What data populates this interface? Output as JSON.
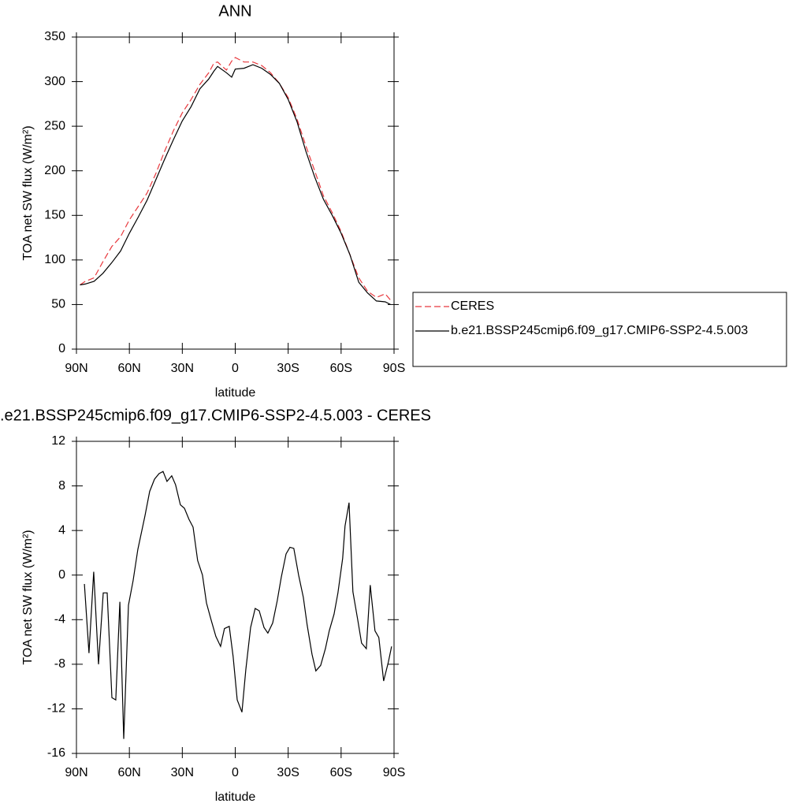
{
  "chart_data": [
    {
      "type": "line",
      "title": "ANN",
      "x_label": "latitude",
      "y_label": "TOA net SW flux (W/m²)",
      "x": [
        88,
        85,
        80,
        75,
        70,
        65,
        60,
        55,
        50,
        45,
        40,
        35,
        30,
        25,
        20,
        15,
        12,
        10,
        5,
        2,
        0,
        -5,
        -10,
        -15,
        -20,
        -25,
        -30,
        -35,
        -40,
        -45,
        -50,
        -55,
        -60,
        -65,
        -70,
        -75,
        -80,
        -85,
        -88
      ],
      "series": [
        {
          "name": "CERES",
          "color": "#e8383d",
          "line_style": "dashed",
          "values": [
            72,
            76,
            80,
            98,
            115,
            126,
            145,
            160,
            175,
            197,
            222,
            245,
            265,
            280,
            297,
            310,
            321,
            322,
            313,
            323,
            327,
            322,
            322,
            318,
            310,
            298,
            282,
            258,
            228,
            200,
            172,
            153,
            132,
            106,
            80,
            65,
            58,
            62,
            55
          ]
        },
        {
          "name": "b.e21.BSSP245cmip6.f09_g17.CMIP6-SSP2-4.5.003",
          "color": "#000000",
          "line_style": "solid",
          "values": [
            72,
            73,
            76,
            85,
            97,
            110,
            130,
            148,
            167,
            190,
            213,
            235,
            256,
            272,
            292,
            303,
            312,
            317,
            310,
            305,
            314,
            315,
            319,
            315,
            308,
            298,
            280,
            255,
            222,
            193,
            168,
            150,
            130,
            106,
            75,
            63,
            54,
            53,
            50
          ]
        }
      ],
      "xlim": [
        90,
        -90
      ],
      "xticks": [
        {
          "value": 90,
          "label": "90N"
        },
        {
          "value": 60,
          "label": "60N"
        },
        {
          "value": 30,
          "label": "30N"
        },
        0,
        {
          "value": -30,
          "label": "30S"
        },
        {
          "value": -60,
          "label": "60S"
        },
        {
          "value": -90,
          "label": "90S"
        }
      ],
      "ylim": [
        0,
        350
      ],
      "yticks": [
        0,
        50,
        100,
        150,
        200,
        250,
        300,
        350
      ],
      "legend": "right"
    },
    {
      "type": "line",
      "title": ".e21.BSSP245cmip6.f09_g17.CMIP6-SSP2-4.5.003 - CERES",
      "x_label": "latitude",
      "y_label": "TOA net SW flux (W/m²)",
      "x": [
        85.5,
        82.9,
        80.2,
        77.5,
        74.8,
        72.6,
        69.9,
        67.7,
        65.4,
        63.2,
        60.5,
        57.9,
        55.2,
        51.2,
        48.5,
        45.8,
        43.2,
        40.9,
        38.7,
        36.0,
        33.8,
        31.1,
        28.8,
        26.2,
        23.9,
        21.3,
        18.6,
        16.3,
        13.7,
        11.0,
        8.3,
        6.1,
        3.4,
        1.2,
        -1.1,
        -3.8,
        -6.0,
        -8.7,
        -11.3,
        -13.6,
        -16.3,
        -18.5,
        -21.2,
        -23.8,
        -26.1,
        -28.8,
        -31.0,
        -33.2,
        -35.9,
        -38.6,
        -40.8,
        -43.5,
        -45.7,
        -48.4,
        -51.1,
        -53.3,
        -56.0,
        -58.2,
        -60.9,
        -62.2,
        -64.5,
        -66.7,
        -69.4,
        -71.6,
        -74.3,
        -76.5,
        -79.2,
        -81.4,
        -84.1,
        -86.8,
        -88.6
      ],
      "color": "#000000",
      "values": [
        -0.8,
        -7,
        0.3,
        -8,
        -1.6,
        -1.6,
        -11,
        -11.2,
        -2.4,
        -14.7,
        -2.7,
        -0.5,
        2.3,
        5.3,
        7.5,
        8.6,
        9.1,
        9.3,
        8.4,
        8.9,
        8.1,
        6.3,
        6,
        5,
        4.3,
        1.3,
        0,
        -2.5,
        -4,
        -5.5,
        -6.4,
        -4.8,
        -4.6,
        -7.3,
        -11.2,
        -12.3,
        -8.5,
        -4.7,
        -3,
        -3.2,
        -4.7,
        -5.2,
        -4.3,
        -2.3,
        -0.2,
        1.9,
        2.5,
        2.4,
        0,
        -2,
        -4.5,
        -7.1,
        -8.6,
        -8.1,
        -6.6,
        -5,
        -3.5,
        -1.6,
        1.5,
        4.4,
        6.5,
        -1.5,
        -4,
        -6.1,
        -6.6,
        -0.9,
        -5,
        -5.6,
        -9.5,
        -7.8,
        -6.4
      ],
      "xlim": [
        90,
        -90
      ],
      "xticks": [
        {
          "value": 90,
          "label": "90N"
        },
        {
          "value": 60,
          "label": "60N"
        },
        {
          "value": 30,
          "label": "30N"
        },
        0,
        {
          "value": -30,
          "label": "30S"
        },
        {
          "value": -60,
          "label": "60S"
        },
        {
          "value": -90,
          "label": "90S"
        }
      ],
      "ylim": [
        -16,
        12
      ],
      "yticks": [
        -16,
        -12,
        -8,
        -4,
        0,
        4,
        8,
        12
      ]
    }
  ]
}
